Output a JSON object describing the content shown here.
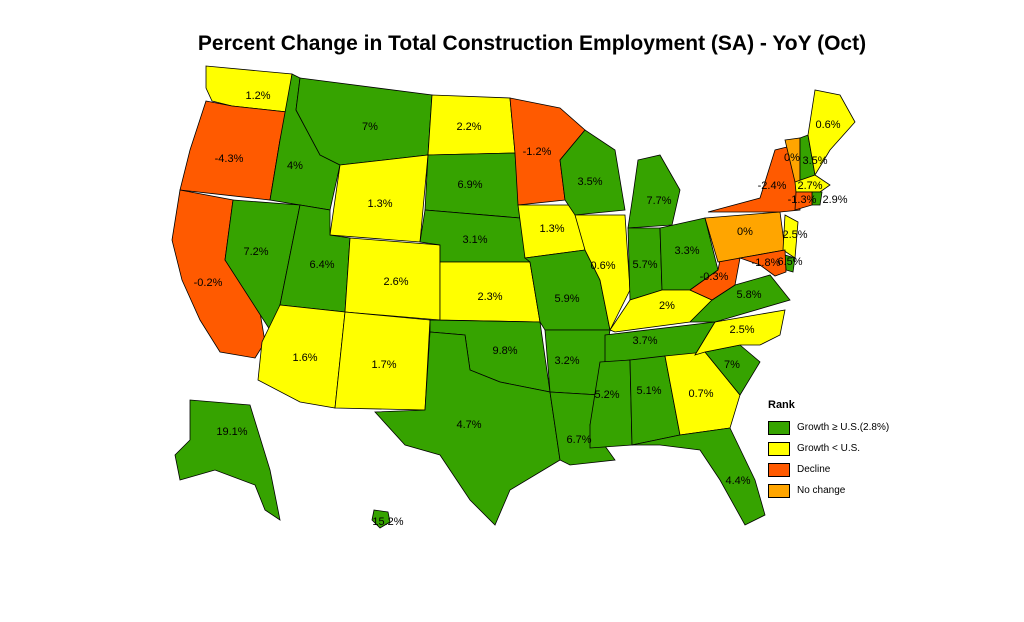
{
  "title": "Percent Change in Total Construction Employment (SA) - YoY (Oct)",
  "colors": {
    "growth_above": "#36A300",
    "growth_below": "#FFFF00",
    "decline": "#FF5A00",
    "no_change": "#FFA500"
  },
  "legend": {
    "title": "Rank",
    "items": [
      {
        "label": "Growth ≥ U.S.(2.8%)",
        "color": "#36A300"
      },
      {
        "label": "Growth < U.S.",
        "color": "#FFFF00"
      },
      {
        "label": "Decline",
        "color": "#FF5A00"
      },
      {
        "label": "No change",
        "color": "#FFA500"
      }
    ]
  },
  "states": [
    {
      "id": "WA",
      "value": "1.2%",
      "category": "growth_below"
    },
    {
      "id": "OR",
      "value": "-4.3%",
      "category": "decline"
    },
    {
      "id": "CA",
      "value": "-0.2%",
      "category": "decline"
    },
    {
      "id": "ID",
      "value": "4%",
      "category": "growth_above"
    },
    {
      "id": "NV",
      "value": "7.2%",
      "category": "growth_above"
    },
    {
      "id": "MT",
      "value": "7%",
      "category": "growth_above"
    },
    {
      "id": "WY",
      "value": "1.3%",
      "category": "growth_below"
    },
    {
      "id": "UT",
      "value": "6.4%",
      "category": "growth_above"
    },
    {
      "id": "AZ",
      "value": "1.6%",
      "category": "growth_below"
    },
    {
      "id": "CO",
      "value": "2.6%",
      "category": "growth_below"
    },
    {
      "id": "NM",
      "value": "1.7%",
      "category": "growth_below"
    },
    {
      "id": "ND",
      "value": "2.2%",
      "category": "growth_below"
    },
    {
      "id": "SD",
      "value": "6.9%",
      "category": "growth_above"
    },
    {
      "id": "NE",
      "value": "3.1%",
      "category": "growth_above"
    },
    {
      "id": "KS",
      "value": "2.3%",
      "category": "growth_below"
    },
    {
      "id": "OK",
      "value": "9.8%",
      "category": "growth_above"
    },
    {
      "id": "TX",
      "value": "4.7%",
      "category": "growth_above"
    },
    {
      "id": "MN",
      "value": "-1.2%",
      "category": "decline"
    },
    {
      "id": "IA",
      "value": "1.3%",
      "category": "growth_below"
    },
    {
      "id": "MO",
      "value": "5.9%",
      "category": "growth_above"
    },
    {
      "id": "AR",
      "value": "3.2%",
      "category": "growth_above"
    },
    {
      "id": "LA",
      "value": "6.7%",
      "category": "growth_above"
    },
    {
      "id": "WI",
      "value": "3.5%",
      "category": "growth_above"
    },
    {
      "id": "IL",
      "value": "0.6%",
      "category": "growth_below"
    },
    {
      "id": "MI",
      "value": "7.7%",
      "category": "growth_above"
    },
    {
      "id": "IN",
      "value": "5.7%",
      "category": "growth_above"
    },
    {
      "id": "OH",
      "value": "3.3%",
      "category": "growth_above"
    },
    {
      "id": "KY",
      "value": "2%",
      "category": "growth_below"
    },
    {
      "id": "TN",
      "value": "3.7%",
      "category": "growth_above"
    },
    {
      "id": "MS",
      "value": "5.2%",
      "category": "growth_above"
    },
    {
      "id": "AL",
      "value": "5.1%",
      "category": "growth_above"
    },
    {
      "id": "GA",
      "value": "0.7%",
      "category": "growth_below"
    },
    {
      "id": "FL",
      "value": "4.4%",
      "category": "growth_above"
    },
    {
      "id": "SC",
      "value": "7%",
      "category": "growth_above"
    },
    {
      "id": "NC",
      "value": "2.5%",
      "category": "growth_below"
    },
    {
      "id": "VA",
      "value": "5.8%",
      "category": "growth_above"
    },
    {
      "id": "WV",
      "value": "-0.3%",
      "category": "decline"
    },
    {
      "id": "PA",
      "value": "0%",
      "category": "no_change"
    },
    {
      "id": "NY",
      "value": "-2.4%",
      "category": "decline"
    },
    {
      "id": "VT",
      "value": "0%",
      "category": "no_change"
    },
    {
      "id": "NH",
      "value": "3.5%",
      "category": "growth_above"
    },
    {
      "id": "ME",
      "value": "0.6%",
      "category": "growth_below"
    },
    {
      "id": "MA",
      "value": "2.7%",
      "category": "growth_below"
    },
    {
      "id": "RI",
      "value": "2.9%",
      "category": "growth_above"
    },
    {
      "id": "CT",
      "value": "-1.3%",
      "category": "decline"
    },
    {
      "id": "NJ",
      "value": "2.5%",
      "category": "growth_below"
    },
    {
      "id": "DE",
      "value": "6.5%",
      "category": "growth_above"
    },
    {
      "id": "MD",
      "value": "-1.8%",
      "category": "decline"
    },
    {
      "id": "AK",
      "value": "19.1%",
      "category": "growth_above"
    },
    {
      "id": "HI",
      "value": "15.2%",
      "category": "growth_above"
    }
  ]
}
